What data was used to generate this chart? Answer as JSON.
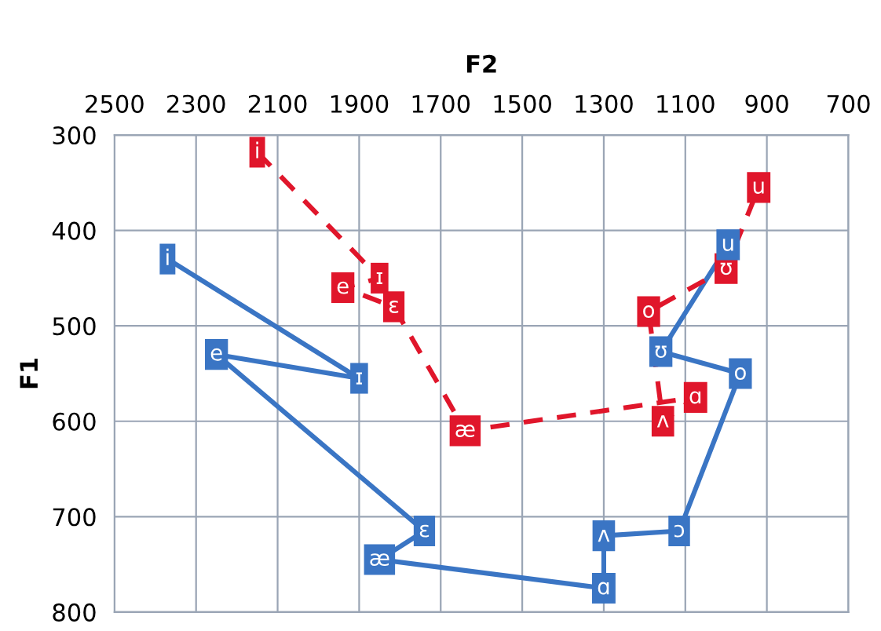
{
  "chart_data": {
    "type": "line",
    "xlabel": "F2",
    "ylabel": "F1",
    "xlim": [
      2500,
      700
    ],
    "xticks": [
      2500,
      2300,
      2100,
      1900,
      1700,
      1500,
      1300,
      1100,
      900,
      700
    ],
    "ylim": [
      800,
      300
    ],
    "yticks": [
      300,
      400,
      500,
      600,
      700,
      800
    ],
    "grid": true,
    "marker": "square",
    "series": [
      {
        "color": "#3a75c4",
        "line_style": "solid",
        "x": [
          2370,
          1900,
          2250,
          1740,
          1850,
          1300,
          1300,
          1115,
          965,
          1160,
          995
        ],
        "values": [
          430,
          555,
          530,
          715,
          745,
          775,
          720,
          715,
          550,
          527,
          415
        ],
        "value_labels": [
          "i",
          "ɪ",
          "e",
          "ɛ",
          "æ",
          "ɑ",
          "ʌ",
          "ɔ",
          "o",
          "ʊ",
          "u"
        ]
      },
      {
        "color": "#e0162b",
        "line_style": "dashed",
        "x": [
          2150,
          1850,
          1940,
          1815,
          1640,
          1075,
          1155,
          1190,
          1000,
          920
        ],
        "values": [
          318,
          450,
          460,
          480,
          610,
          575,
          600,
          485,
          440,
          355
        ],
        "value_labels": [
          "i",
          "ɪ",
          "e",
          "ɛ",
          "æ",
          "ɑ",
          "ʌ",
          "o",
          "ʊ",
          "u"
        ]
      }
    ]
  }
}
